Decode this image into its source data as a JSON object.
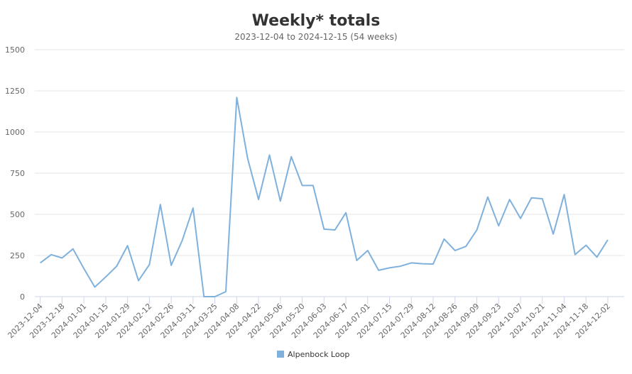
{
  "chart_data": {
    "type": "line",
    "title": "Weekly* totals",
    "subtitle": "2023-12-04 to 2024-12-15 (54 weeks)",
    "categories": [
      "2023-12-04",
      null,
      "2023-12-18",
      null,
      "2024-01-01",
      null,
      "2024-01-15",
      null,
      "2024-01-29",
      null,
      "2024-02-12",
      null,
      "2024-02-26",
      null,
      "2024-03-11",
      null,
      "2024-03-25",
      null,
      "2024-04-08",
      null,
      "2024-04-22",
      null,
      "2024-05-06",
      null,
      "2024-05-20",
      null,
      "2024-06-03",
      null,
      "2024-06-17",
      null,
      "2024-07-01",
      null,
      "2024-07-15",
      null,
      "2024-07-29",
      null,
      "2024-08-12",
      null,
      "2024-08-26",
      null,
      "2024-09-09",
      null,
      "2024-09-23",
      null,
      "2024-10-07",
      null,
      "2024-10-21",
      null,
      "2024-11-04",
      null,
      "2024-11-18",
      null,
      "2024-12-02",
      null
    ],
    "series": [
      {
        "name": "Alpenbock Loop",
        "color": "#7fb1dc",
        "values": [
          205,
          255,
          235,
          290,
          170,
          58,
          120,
          185,
          310,
          97,
          195,
          560,
          190,
          340,
          538,
          0,
          0,
          30,
          1210,
          840,
          590,
          860,
          580,
          850,
          675,
          675,
          410,
          405,
          510,
          220,
          280,
          160,
          175,
          185,
          205,
          200,
          198,
          350,
          280,
          305,
          405,
          605,
          430,
          590,
          475,
          600,
          595,
          380,
          620,
          255,
          312,
          240,
          345,
          null
        ]
      }
    ],
    "ylim": [
      0,
      1500
    ],
    "yticks": [
      0,
      250,
      500,
      750,
      1000,
      1250,
      1500
    ],
    "grid": true,
    "legend": "bottom"
  }
}
